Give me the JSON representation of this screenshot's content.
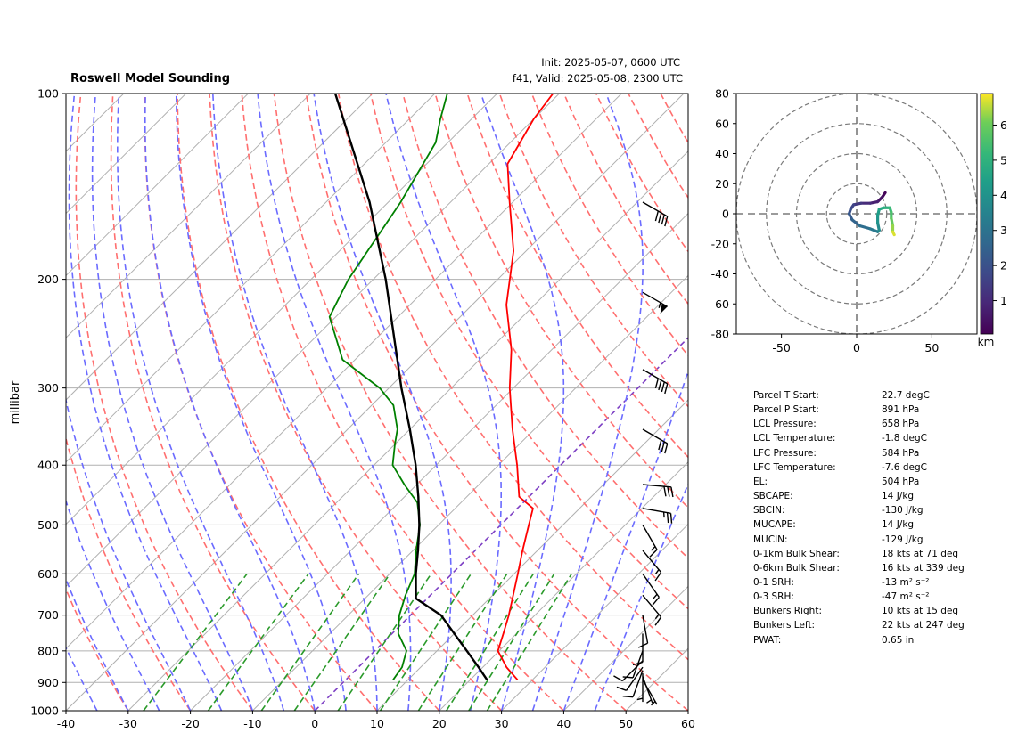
{
  "header": {
    "title": "Roswell Model Sounding",
    "init": "Init: 2025-05-07, 0600 UTC",
    "valid": "f41, Valid: 2025-05-08, 2300 UTC"
  },
  "colors": {
    "temperature": "#ff0000",
    "dewpoint": "#008000",
    "parcel": "#000000",
    "dry_adiabat": "#ff6f6f",
    "moist_adiabat": "#6b6bff",
    "mixing_ratio": "#2a9a2a",
    "isotherm_zero": "#7d3fc4",
    "grid": "#b0b0b0"
  },
  "chart_data": [
    {
      "type": "line",
      "subtype": "skew-t log-p",
      "title": "Roswell Model Sounding",
      "ylabel": "millibar",
      "xlabel": "",
      "xlim": [
        -40,
        60
      ],
      "ylim": [
        1000,
        100
      ],
      "y_scale": "log",
      "x_ticks": [
        -40,
        -30,
        -20,
        -10,
        0,
        10,
        20,
        30,
        40,
        50,
        60
      ],
      "y_ticks": [
        1000,
        900,
        800,
        700,
        600,
        500,
        400,
        300,
        200,
        100
      ],
      "series": [
        {
          "key": "temperature",
          "points": [
            [
              891,
              27.6
            ],
            [
              850,
              23.8
            ],
            [
              800,
              19.8
            ],
            [
              750,
              17.9
            ],
            [
              700,
              15.8
            ],
            [
              650,
              13.3
            ],
            [
              600,
              10.6
            ],
            [
              550,
              7.6
            ],
            [
              500,
              4.5
            ],
            [
              470,
              2.5
            ],
            [
              450,
              -1.6
            ],
            [
              400,
              -7.0
            ],
            [
              350,
              -13.5
            ],
            [
              300,
              -20.6
            ],
            [
              260,
              -26.5
            ],
            [
              220,
              -34.5
            ],
            [
              180,
              -42.0
            ],
            [
              150,
              -50.5
            ],
            [
              130,
              -57.0
            ],
            [
              110,
              -60.0
            ],
            [
              100,
              -61.0
            ]
          ]
        },
        {
          "key": "dewpoint",
          "points": [
            [
              891,
              7.6
            ],
            [
              850,
              7.0
            ],
            [
              800,
              5.1
            ],
            [
              750,
              1.0
            ],
            [
              700,
              -1.8
            ],
            [
              650,
              -4.0
            ],
            [
              600,
              -6.0
            ],
            [
              550,
              -9.5
            ],
            [
              500,
              -13.0
            ],
            [
              460,
              -17.0
            ],
            [
              430,
              -22.0
            ],
            [
              400,
              -27.0
            ],
            [
              370,
              -30.0
            ],
            [
              350,
              -32.0
            ],
            [
              320,
              -36.5
            ],
            [
              300,
              -41.5
            ],
            [
              270,
              -52.0
            ],
            [
              230,
              -61.0
            ],
            [
              200,
              -64.0
            ],
            [
              150,
              -68.0
            ],
            [
              120,
              -72.0
            ],
            [
              110,
              -75.0
            ],
            [
              100,
              -78.0
            ]
          ]
        },
        {
          "key": "parcel",
          "points": [
            [
              891,
              22.7
            ],
            [
              850,
              19.3
            ],
            [
              800,
              14.8
            ],
            [
              750,
              10.0
            ],
            [
              700,
              4.9
            ],
            [
              658,
              -1.8
            ],
            [
              600,
              -5.8
            ],
            [
              550,
              -9.2
            ],
            [
              500,
              -13.1
            ],
            [
              450,
              -17.8
            ],
            [
              400,
              -23.3
            ],
            [
              350,
              -30.0
            ],
            [
              300,
              -38.0
            ],
            [
              250,
              -47.0
            ],
            [
              200,
              -58.0
            ],
            [
              150,
              -73.0
            ],
            [
              100,
              -96.0
            ]
          ]
        }
      ],
      "wind_barbs": [
        {
          "p": 891,
          "dir": 150,
          "kts": 5
        },
        {
          "p": 880,
          "dir": 160,
          "kts": 6
        },
        {
          "p": 870,
          "dir": 180,
          "kts": 6
        },
        {
          "p": 860,
          "dir": 200,
          "kts": 8
        },
        {
          "p": 850,
          "dir": 215,
          "kts": 8
        },
        {
          "p": 830,
          "dir": 225,
          "kts": 10
        },
        {
          "p": 800,
          "dir": 200,
          "kts": 10
        },
        {
          "p": 750,
          "dir": 180,
          "kts": 12
        },
        {
          "p": 700,
          "dir": 170,
          "kts": 10
        },
        {
          "p": 650,
          "dir": 140,
          "kts": 15
        },
        {
          "p": 600,
          "dir": 145,
          "kts": 15
        },
        {
          "p": 550,
          "dir": 140,
          "kts": 15
        },
        {
          "p": 500,
          "dir": 150,
          "kts": 15
        },
        {
          "p": 470,
          "dir": 100,
          "kts": 25
        },
        {
          "p": 430,
          "dir": 95,
          "kts": 30
        },
        {
          "p": 350,
          "dir": 120,
          "kts": 30
        },
        {
          "p": 280,
          "dir": 120,
          "kts": 40
        },
        {
          "p": 210,
          "dir": 120,
          "kts": 55
        },
        {
          "p": 150,
          "dir": 120,
          "kts": 40
        }
      ]
    },
    {
      "type": "line",
      "subtype": "hodograph",
      "xlim": [
        -80,
        80
      ],
      "ylim": [
        -80,
        80
      ],
      "x_ticks": [
        -50,
        0,
        50
      ],
      "y_ticks": [
        -80,
        -60,
        -40,
        -20,
        0,
        20,
        40,
        60,
        80
      ],
      "rings": [
        20,
        40,
        60,
        80
      ],
      "colorbar": {
        "label": "km",
        "min": 0.05,
        "max": 6.9,
        "ticks": [
          1,
          2,
          3,
          4,
          5,
          6
        ]
      },
      "points": [
        {
          "u": 19,
          "v": 14,
          "h": 0.05
        },
        {
          "u": 17,
          "v": 11,
          "h": 0.3
        },
        {
          "u": 14,
          "v": 8,
          "h": 0.6
        },
        {
          "u": 9,
          "v": 7,
          "h": 0.9
        },
        {
          "u": 3,
          "v": 7,
          "h": 1.2
        },
        {
          "u": -2,
          "v": 6,
          "h": 1.5
        },
        {
          "u": -4,
          "v": 3,
          "h": 1.8
        },
        {
          "u": -5,
          "v": 0,
          "h": 2.1
        },
        {
          "u": -3,
          "v": -4,
          "h": 2.4
        },
        {
          "u": 2,
          "v": -8,
          "h": 2.7
        },
        {
          "u": 9,
          "v": -10,
          "h": 3.0
        },
        {
          "u": 14,
          "v": -12,
          "h": 3.3
        },
        {
          "u": 15,
          "v": -11,
          "h": 3.6
        },
        {
          "u": 14,
          "v": -6,
          "h": 3.9
        },
        {
          "u": 14,
          "v": -1,
          "h": 4.2
        },
        {
          "u": 15,
          "v": 3,
          "h": 4.5
        },
        {
          "u": 18,
          "v": 4,
          "h": 4.8
        },
        {
          "u": 22,
          "v": 4,
          "h": 5.1
        },
        {
          "u": 23,
          "v": 1,
          "h": 5.4
        },
        {
          "u": 23,
          "v": -3,
          "h": 5.7
        },
        {
          "u": 24,
          "v": -8,
          "h": 6.1
        },
        {
          "u": 24,
          "v": -12,
          "h": 6.5
        },
        {
          "u": 25,
          "v": -14,
          "h": 6.9
        }
      ]
    }
  ],
  "stats": [
    {
      "label": "Parcel T Start:",
      "value": "22.7 degC"
    },
    {
      "label": "Parcel P Start:",
      "value": "891 hPa"
    },
    {
      "label": "LCL Pressure:",
      "value": "658 hPa"
    },
    {
      "label": "LCL Temperature:",
      "value": "-1.8 degC"
    },
    {
      "label": "LFC Pressure:",
      "value": "584 hPa"
    },
    {
      "label": "LFC Temperature:",
      "value": "-7.6 degC"
    },
    {
      "label": "EL:",
      "value": "504 hPa"
    },
    {
      "label": "SBCAPE:",
      "value": "14 J/kg"
    },
    {
      "label": "SBCIN:",
      "value": "-130 J/kg"
    },
    {
      "label": "MUCAPE:",
      "value": "14 J/kg"
    },
    {
      "label": "MUCIN:",
      "value": "-129 J/kg"
    },
    {
      "label": "0-1km Bulk Shear:",
      "value": "18 kts at 71 deg"
    },
    {
      "label": "0-6km Bulk Shear:",
      "value": "16 kts at 339 deg"
    },
    {
      "label": "0-1 SRH:",
      "value": "-13 m² s⁻²"
    },
    {
      "label": "0-3 SRH:",
      "value": "-47 m² s⁻²"
    },
    {
      "label": "Bunkers Right:",
      "value": "10 kts at 15 deg"
    },
    {
      "label": "Bunkers Left:",
      "value": "22 kts at 247 deg"
    },
    {
      "label": "PWAT:",
      "value": "0.65 in"
    }
  ]
}
